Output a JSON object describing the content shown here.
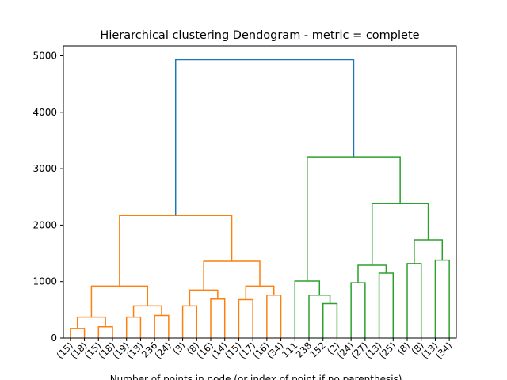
{
  "chart_data": {
    "type": "dendrogram",
    "title": "Hierarchical clustering Dendogram - metric = complete",
    "xlabel": "Number of points in node (or index of point if no parenthesis).",
    "ylabel": "",
    "ylim": [
      0,
      5200
    ],
    "yticks": [
      0,
      1000,
      2000,
      3000,
      4000,
      5000
    ],
    "grid": false,
    "leaf_labels": [
      "(15)",
      "(18)",
      "(15)",
      "(18)",
      "(19)",
      "(13)",
      "236",
      "(24)",
      "(3)",
      "(8)",
      "(16)",
      "(14)",
      "(15)",
      "(17)",
      "(16)",
      "(34)",
      "111",
      "238",
      "152",
      "(2)",
      "(24)",
      "(27)",
      "(13)",
      "(25)",
      "(8)",
      "(8)",
      "(13)",
      "(34)"
    ],
    "colors": {
      "left_cluster": "#ff7f0e",
      "right_cluster": "#2ca02c",
      "root": "#1f77b4"
    },
    "merges": [
      {
        "id": 0,
        "left": "L0",
        "right": "L1",
        "height": 170,
        "color": "left_cluster"
      },
      {
        "id": 1,
        "left": "L2",
        "right": "L3",
        "height": 200,
        "color": "left_cluster"
      },
      {
        "id": 2,
        "left": "M0",
        "right": "M1",
        "height": 370,
        "color": "left_cluster"
      },
      {
        "id": 3,
        "left": "L4",
        "right": "L5",
        "height": 370,
        "color": "left_cluster"
      },
      {
        "id": 4,
        "left": "L6",
        "right": "L7",
        "height": 400,
        "color": "left_cluster"
      },
      {
        "id": 5,
        "left": "M3",
        "right": "M4",
        "height": 570,
        "color": "left_cluster"
      },
      {
        "id": 6,
        "left": "M2",
        "right": "M5",
        "height": 920,
        "color": "left_cluster"
      },
      {
        "id": 7,
        "left": "L8",
        "right": "L9",
        "height": 570,
        "color": "left_cluster"
      },
      {
        "id": 8,
        "left": "L10",
        "right": "L11",
        "height": 690,
        "color": "left_cluster"
      },
      {
        "id": 9,
        "left": "M7",
        "right": "M8",
        "height": 850,
        "color": "left_cluster"
      },
      {
        "id": 10,
        "left": "L12",
        "right": "L13",
        "height": 680,
        "color": "left_cluster"
      },
      {
        "id": 11,
        "left": "L14",
        "right": "L15",
        "height": 760,
        "color": "left_cluster"
      },
      {
        "id": 12,
        "left": "M10",
        "right": "M11",
        "height": 920,
        "color": "left_cluster"
      },
      {
        "id": 13,
        "left": "M9",
        "right": "M12",
        "height": 1360,
        "color": "left_cluster"
      },
      {
        "id": 14,
        "left": "M6",
        "right": "M13",
        "height": 2170,
        "color": "left_cluster"
      },
      {
        "id": 15,
        "left": "L18",
        "right": "L19",
        "height": 610,
        "color": "right_cluster"
      },
      {
        "id": 16,
        "left": "L17",
        "right": "M15",
        "height": 760,
        "color": "right_cluster"
      },
      {
        "id": 17,
        "left": "L16",
        "right": "M16",
        "height": 1010,
        "color": "right_cluster"
      },
      {
        "id": 18,
        "left": "L22",
        "right": "L23",
        "height": 1150,
        "color": "right_cluster"
      },
      {
        "id": 19,
        "left": "L20",
        "right": "L21",
        "height": 980,
        "color": "right_cluster"
      },
      {
        "id": 20,
        "left": "M19",
        "right": "M18",
        "height": 1290,
        "color": "right_cluster"
      },
      {
        "id": 21,
        "left": "L24",
        "right": "L25",
        "height": 1320,
        "color": "right_cluster"
      },
      {
        "id": 22,
        "left": "L26",
        "right": "L27",
        "height": 1380,
        "color": "right_cluster"
      },
      {
        "id": 23,
        "left": "M21",
        "right": "M22",
        "height": 1740,
        "color": "right_cluster"
      },
      {
        "id": 24,
        "left": "M20",
        "right": "M23",
        "height": 2380,
        "color": "right_cluster"
      },
      {
        "id": 25,
        "left": "M17",
        "right": "M24",
        "height": 3210,
        "color": "right_cluster"
      },
      {
        "id": 26,
        "left": "M14",
        "right": "M25",
        "height": 4930,
        "color": "root"
      }
    ]
  }
}
